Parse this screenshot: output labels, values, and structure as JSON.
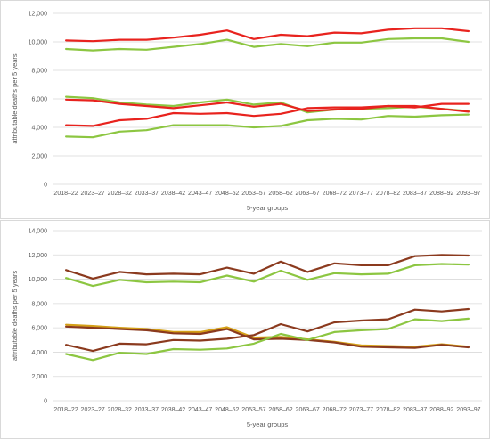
{
  "chart_data": [
    {
      "type": "line",
      "xlabel": "5-year groups",
      "ylabel": "attributable deaths per 5 years",
      "ylim": [
        0,
        12000
      ],
      "yticks": [
        "0",
        "2,000",
        "4,000",
        "6,000",
        "8,000",
        "10,000",
        "12,000"
      ],
      "categories": [
        "2018–22",
        "2023–27",
        "2028–32",
        "2033–37",
        "2038–42",
        "2043–47",
        "2048–52",
        "2053–57",
        "2058–62",
        "2063–67",
        "2068–72",
        "2073–77",
        "2078–82",
        "2083–87",
        "2088–92",
        "2093–97"
      ],
      "grid": true,
      "series": [
        {
          "color": "#e8231e",
          "values": [
            10100,
            10050,
            10150,
            10150,
            10300,
            10500,
            10800,
            10200,
            10500,
            10400,
            10650,
            10600,
            10850,
            10950,
            10950,
            10750
          ]
        },
        {
          "color": "#8cc641",
          "values": [
            9500,
            9400,
            9500,
            9450,
            9650,
            9850,
            10150,
            9650,
            9850,
            9700,
            9950,
            9950,
            10200,
            10250,
            10250,
            10000
          ]
        },
        {
          "color": "#8cc641",
          "values": [
            6150,
            6050,
            5750,
            5600,
            5500,
            5750,
            5950,
            5600,
            5750,
            5050,
            5250,
            5300,
            5350,
            5450,
            5300,
            5150
          ]
        },
        {
          "color": "#e8231e",
          "values": [
            5950,
            5900,
            5650,
            5500,
            5350,
            5550,
            5750,
            5450,
            5650,
            5150,
            5250,
            5300,
            5500,
            5400,
            5650,
            5650
          ]
        },
        {
          "color": "#e8231e",
          "values": [
            4150,
            4100,
            4500,
            4600,
            5000,
            4950,
            5000,
            4800,
            4950,
            5350,
            5400,
            5400,
            5500,
            5500,
            5300,
            5100
          ]
        },
        {
          "color": "#8cc641",
          "values": [
            3350,
            3300,
            3700,
            3800,
            4150,
            4150,
            4150,
            4000,
            4100,
            4500,
            4600,
            4550,
            4800,
            4750,
            4850,
            4900
          ]
        }
      ]
    },
    {
      "type": "line",
      "xlabel": "5-year groups",
      "ylabel": "attributable deaths per 5 years",
      "ylim": [
        0,
        14000
      ],
      "yticks": [
        "0",
        "2,000",
        "4,000",
        "6,000",
        "8,000",
        "10,000",
        "12,000",
        "14,000"
      ],
      "categories": [
        "2018–22",
        "2023–27",
        "2028–32",
        "2033–37",
        "2038–42",
        "2043–47",
        "2048–52",
        "2053–57",
        "2058–62",
        "2063–67",
        "2068–72",
        "2073–77",
        "2078–82",
        "2083–87",
        "2088–92",
        "2093–97"
      ],
      "grid": true,
      "series": [
        {
          "color": "#8b3a1e",
          "values": [
            10750,
            10050,
            10600,
            10400,
            10450,
            10400,
            10950,
            10450,
            11450,
            10600,
            11300,
            11150,
            11150,
            11900,
            12000,
            11950
          ]
        },
        {
          "color": "#8cc641",
          "values": [
            10100,
            9450,
            9950,
            9750,
            9800,
            9750,
            10300,
            9800,
            10700,
            9950,
            10500,
            10400,
            10450,
            11150,
            11250,
            11200
          ]
        },
        {
          "color": "#d4a017",
          "values": [
            6250,
            6150,
            6000,
            5900,
            5650,
            5650,
            6050,
            5200,
            5250,
            5050,
            4850,
            4550,
            4500,
            4450,
            4650,
            4450
          ]
        },
        {
          "color": "#8b3a1e",
          "values": [
            6100,
            6000,
            5900,
            5800,
            5550,
            5500,
            5900,
            5050,
            5100,
            5000,
            4800,
            4450,
            4400,
            4350,
            4600,
            4400
          ]
        },
        {
          "color": "#8b3a1e",
          "values": [
            4600,
            4100,
            4700,
            4650,
            5000,
            4950,
            5100,
            5400,
            6300,
            5700,
            6450,
            6600,
            6700,
            7500,
            7350,
            7550
          ]
        },
        {
          "color": "#8cc641",
          "values": [
            3850,
            3350,
            3950,
            3850,
            4250,
            4200,
            4300,
            4700,
            5500,
            5000,
            5650,
            5800,
            5900,
            6700,
            6550,
            6750
          ]
        }
      ]
    }
  ]
}
